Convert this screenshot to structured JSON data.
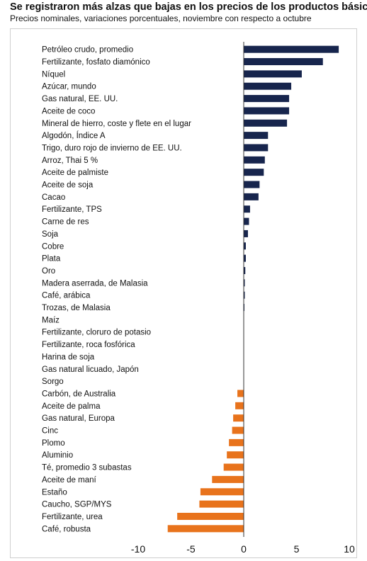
{
  "chart_data": {
    "type": "bar",
    "orientation": "horizontal",
    "title": "Se registraron más alzas que bajas en los precios de los productos básicos",
    "subtitle": "Precios nominales, variaciones porcentuales, noviembre con respecto a octubre",
    "xlabel": "",
    "ylabel": "",
    "xlim": [
      -12,
      10
    ],
    "xticks": [
      "-10",
      "-5",
      "0",
      "5",
      "10"
    ],
    "xtick_values": [
      -10,
      -5,
      0,
      5,
      10
    ],
    "grid": false,
    "colors": {
      "positive": "#17254d",
      "negative": "#e8731c",
      "axis": "#333333"
    },
    "categories": [
      "Petróleo crudo, promedio",
      "Fertilizante, fosfato diamónico",
      "Níquel",
      "Azúcar, mundo",
      "Gas natural, EE. UU.",
      "Aceite de coco",
      "Mineral de hierro, coste y flete en el lugar",
      "Algodón, Índice A",
      "Trigo, duro rojo de invierno de EE. UU.",
      "Arroz, Thai 5 %",
      "Aceite de palmiste",
      "Aceite de soja",
      "Cacao",
      "Fertilizante, TPS",
      "Carne de res",
      "Soja",
      "Cobre",
      "Plata",
      "Oro",
      "Madera aserrada, de Malasia",
      "Café, arábica",
      "Trozas, de Malasia",
      "Maíz",
      "Fertilizante, cloruro de potasio",
      "Fertilizante, roca fosfórica",
      "Harina de soja",
      "Gas natural licuado, Japón",
      "Sorgo",
      "Carbón, de Australia",
      "Aceite de palma",
      "Gas natural, Europa",
      "Cinc",
      "Plomo",
      "Aluminio",
      "Té, promedio 3 subastas",
      "Aceite de maní",
      "Estaño",
      "Caucho, SGP/MYS",
      "Fertilizante, urea",
      "Café, robusta"
    ],
    "values": [
      9.0,
      7.5,
      5.5,
      4.5,
      4.3,
      4.3,
      4.1,
      2.3,
      2.3,
      2.0,
      1.9,
      1.5,
      1.4,
      0.6,
      0.5,
      0.4,
      0.2,
      0.2,
      0.15,
      0.1,
      0.1,
      0.05,
      0.0,
      0.0,
      0.0,
      0.0,
      0.0,
      0.0,
      -0.6,
      -0.8,
      -1.0,
      -1.1,
      -1.4,
      -1.6,
      -1.9,
      -3.0,
      -4.1,
      -4.2,
      -6.3,
      -7.2
    ]
  }
}
